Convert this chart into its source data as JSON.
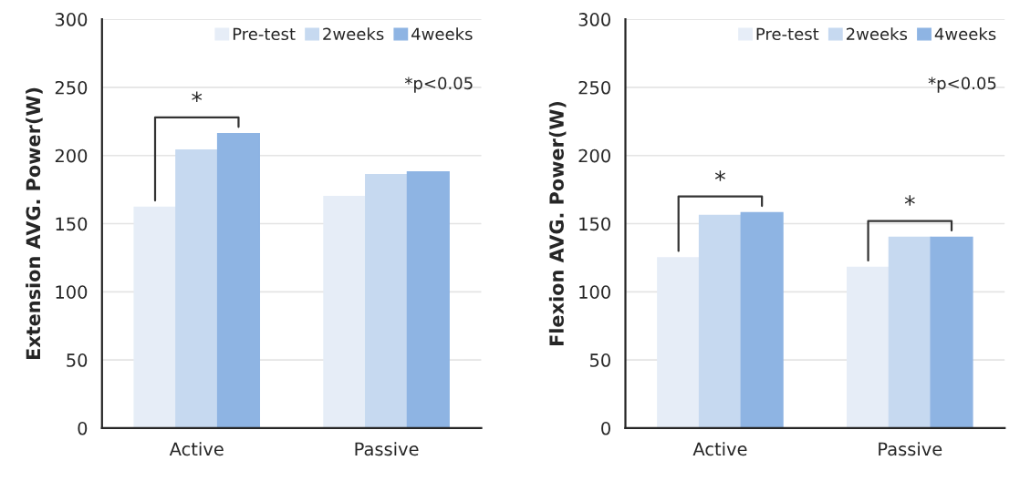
{
  "chart_data": [
    {
      "type": "bar",
      "ylabel": "Extension AVG. Power(W)",
      "categories": [
        "Active",
        "Passive"
      ],
      "series": [
        {
          "name": "Pre-test",
          "color": "#e6edf7",
          "values": [
            162,
            170
          ]
        },
        {
          "name": "2weeks",
          "color": "#c6d9f0",
          "values": [
            204,
            186
          ]
        },
        {
          "name": "4weeks",
          "color": "#8eb4e3",
          "values": [
            216,
            188
          ]
        }
      ],
      "ylim": [
        0,
        300
      ],
      "yticks": [
        0,
        50,
        100,
        150,
        200,
        250,
        300
      ],
      "grid": "y",
      "legend": "top right",
      "annotations": [
        "*p<0.05",
        "*"
      ]
    },
    {
      "type": "bar",
      "ylabel": "Flexion AVG. Power(W)",
      "categories": [
        "Active",
        "Passive"
      ],
      "series": [
        {
          "name": "Pre-test",
          "color": "#e6edf7",
          "values": [
            125,
            118
          ]
        },
        {
          "name": "2weeks",
          "color": "#c6d9f0",
          "values": [
            156,
            140
          ]
        },
        {
          "name": "4weeks",
          "color": "#8eb4e3",
          "values": [
            158,
            140
          ]
        }
      ],
      "ylim": [
        0,
        300
      ],
      "yticks": [
        0,
        50,
        100,
        150,
        200,
        250,
        300
      ],
      "grid": "y",
      "legend": "top right",
      "annotations": [
        "*p<0.05",
        "*",
        "*"
      ]
    }
  ]
}
